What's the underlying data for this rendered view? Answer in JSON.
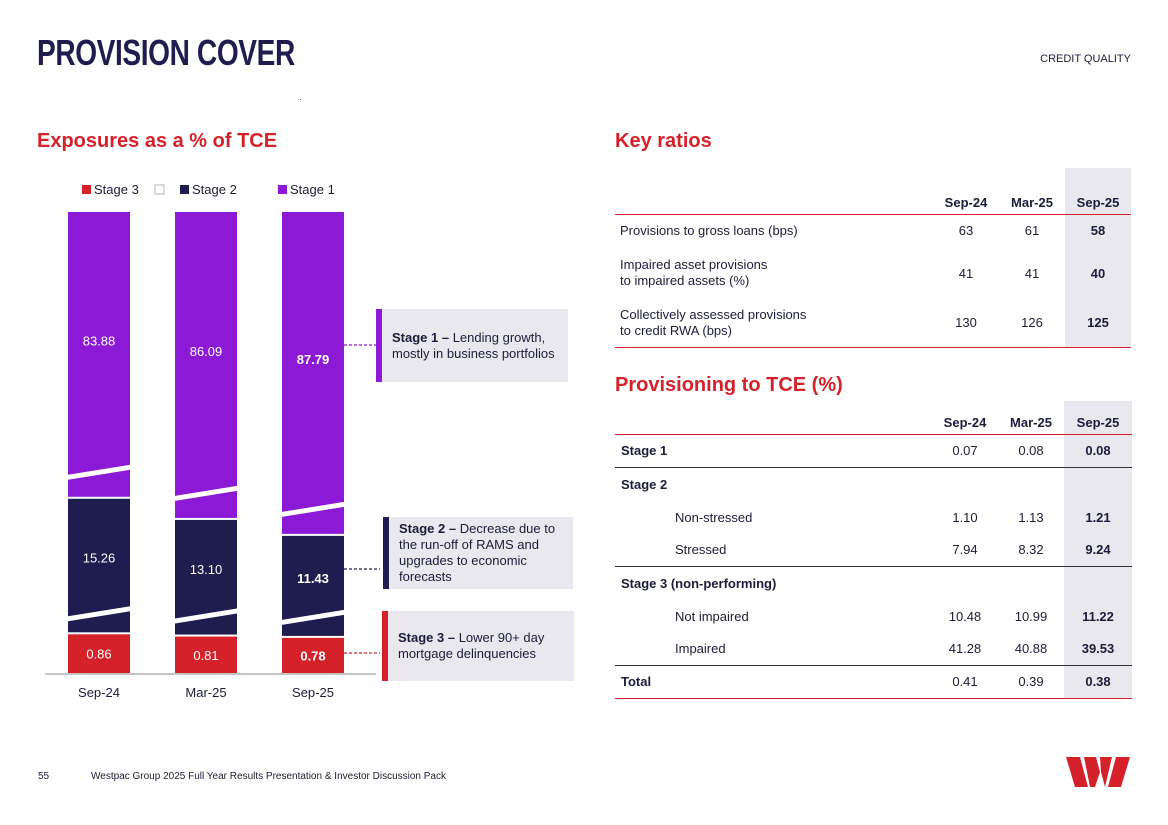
{
  "header": {
    "title": "PROVISION COVER",
    "section": "CREDIT QUALITY"
  },
  "left": {
    "heading": "Exposures as a % of TCE"
  },
  "chart_data": {
    "type": "bar",
    "stacked": true,
    "categories": [
      "Sep-24",
      "Mar-25",
      "Sep-25"
    ],
    "series": [
      {
        "name": "Stage 3",
        "color": "#d5222a",
        "values": [
          0.86,
          0.81,
          0.78
        ]
      },
      {
        "name": "Stage 2",
        "color": "#1f1c4f",
        "values": [
          15.26,
          13.1,
          11.43
        ]
      },
      {
        "name": "Stage 1",
        "color": "#8c19d6",
        "values": [
          83.88,
          86.09,
          87.79
        ]
      }
    ],
    "value_labels": {
      "Stage 3": [
        "0.86",
        "0.81",
        "0.78"
      ],
      "Stage 2": [
        "15.26",
        "13.10",
        "11.43"
      ],
      "Stage 1": [
        "83.88",
        "86.09",
        "87.79"
      ]
    },
    "highlight_category": "Sep-25",
    "axis_break": true,
    "legend_position": "top"
  },
  "callouts": [
    {
      "title": "Stage 1 –",
      "text": " Lending growth, mostly in business portfolios"
    },
    {
      "title": "Stage 2 –",
      "text": " Decrease due to the run-off of RAMS and upgrades to economic forecasts"
    },
    {
      "title": "Stage 3 –",
      "text": " Lower 90+ day mortgage delinquencies"
    }
  ],
  "ratios": {
    "heading": "Key ratios",
    "columns": [
      "Sep-24",
      "Mar-25",
      "Sep-25"
    ],
    "rows": [
      {
        "label": "Provisions to gross loans (bps)",
        "values": [
          "63",
          "61",
          "58"
        ]
      },
      {
        "label": "Impaired asset provisions",
        "label2": "to impaired assets (%)",
        "values": [
          "41",
          "41",
          "40"
        ]
      },
      {
        "label": "Collectively assessed provisions",
        "label2": "to credit RWA (bps)",
        "values": [
          "130",
          "126",
          "125"
        ]
      }
    ]
  },
  "provisioning": {
    "heading": "Provisioning to TCE (%)",
    "columns": [
      "Sep-24",
      "Mar-25",
      "Sep-25"
    ],
    "stage1": {
      "label": "Stage 1",
      "values": [
        "0.07",
        "0.08",
        "0.08"
      ]
    },
    "stage2": {
      "label": "Stage 2"
    },
    "non_stressed": {
      "label": "Non-stressed",
      "values": [
        "1.10",
        "1.13",
        "1.21"
      ]
    },
    "stressed": {
      "label": "Stressed",
      "values": [
        "7.94",
        "8.32",
        "9.24"
      ]
    },
    "stage3": {
      "label": "Stage 3 (non-performing)"
    },
    "not_impaired": {
      "label": "Not impaired",
      "values": [
        "10.48",
        "10.99",
        "11.22"
      ]
    },
    "impaired": {
      "label": "Impaired",
      "values": [
        "41.28",
        "40.88",
        "39.53"
      ]
    },
    "total": {
      "label": "Total",
      "values": [
        "0.41",
        "0.39",
        "0.38"
      ]
    }
  },
  "footer": {
    "page": "55",
    "text": "Westpac Group 2025 Full Year Results Presentation & Investor Discussion Pack"
  }
}
